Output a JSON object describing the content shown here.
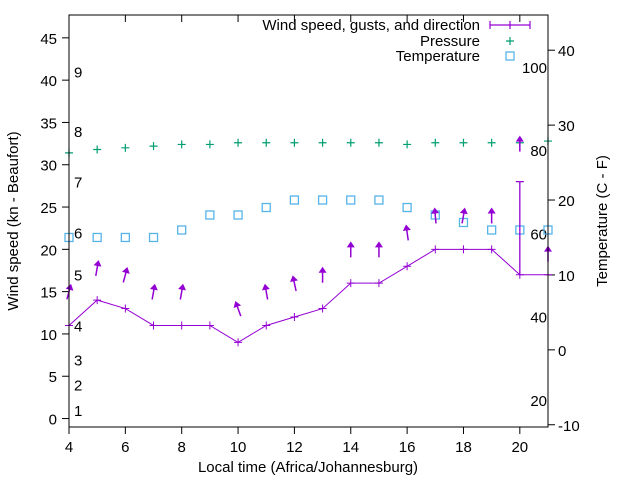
{
  "chart_data": {
    "type": "line",
    "xlabel": "Local time (Africa/Johannesburg)",
    "ylabel": "Wind speed (kn - Beaufort)",
    "y2label": "Temperature (C - F)",
    "xlim": [
      4,
      21
    ],
    "ylim": [
      -1,
      47.7
    ],
    "y2lim": [
      -10.3,
      44.7
    ],
    "xticks": [
      4,
      6,
      8,
      10,
      12,
      14,
      16,
      18,
      20
    ],
    "yticks": [
      0,
      5,
      10,
      15,
      20,
      25,
      30,
      35,
      40,
      45
    ],
    "y2ticks": [
      -10,
      0,
      10,
      20,
      30,
      40
    ],
    "beaufort_labels": [
      {
        "label": "1",
        "kn": 1
      },
      {
        "label": "2",
        "kn": 4
      },
      {
        "label": "3",
        "kn": 7
      },
      {
        "label": "4",
        "kn": 11
      },
      {
        "label": "5",
        "kn": 17
      },
      {
        "label": "6",
        "kn": 22
      },
      {
        "label": "7",
        "kn": 28
      },
      {
        "label": "8",
        "kn": 34
      },
      {
        "label": "9",
        "kn": 41
      }
    ],
    "fahrenheit_labels": [
      {
        "label": "20",
        "f": 20
      },
      {
        "label": "40",
        "f": 40
      },
      {
        "label": "60",
        "f": 60
      },
      {
        "label": "80",
        "f": 80
      },
      {
        "label": "100",
        "f": 100
      }
    ],
    "legend": {
      "placement": "top-right",
      "entries": [
        "Wind speed, gusts, and direction",
        "Pressure",
        "Temperature"
      ]
    },
    "colors": {
      "wind": "#9400d3",
      "pressure": "#009e73",
      "temperature": "#56b4e9"
    },
    "x": [
      4,
      5,
      6,
      7,
      8,
      9,
      10,
      11,
      12,
      13,
      14,
      15,
      16,
      17,
      18,
      19,
      20,
      21
    ],
    "series": [
      {
        "name": "Wind speed, gusts, and direction",
        "axis": "y",
        "values": [
          11,
          14,
          13,
          11,
          11,
          11,
          9,
          11,
          12,
          13,
          16,
          16,
          18,
          20,
          20,
          20,
          17,
          17
        ],
        "gusts": [
          {
            "x": 20,
            "low": 17,
            "high": 28
          }
        ]
      },
      {
        "name": "Pressure",
        "axis": "y",
        "values": [
          31.4,
          31.8,
          32.0,
          32.2,
          32.4,
          32.4,
          32.6,
          32.6,
          32.6,
          32.6,
          32.6,
          32.6,
          32.4,
          32.6,
          32.6,
          32.6,
          32.6,
          32.8
        ]
      },
      {
        "name": "Temperature",
        "axis": "y2",
        "values": [
          15,
          15,
          15,
          15,
          16,
          18,
          18,
          19,
          20,
          20,
          20,
          20,
          19,
          18,
          17,
          16,
          16,
          16
        ]
      }
    ],
    "direction_arrows": [
      {
        "x": 4,
        "kn": 15,
        "deg": 15
      },
      {
        "x": 5,
        "kn": 17.8,
        "deg": 10
      },
      {
        "x": 6,
        "kn": 17,
        "deg": 15
      },
      {
        "x": 7,
        "kn": 15,
        "deg": 10
      },
      {
        "x": 8,
        "kn": 15,
        "deg": 10
      },
      {
        "x": 10,
        "kn": 13,
        "deg": -20
      },
      {
        "x": 11,
        "kn": 15,
        "deg": -10
      },
      {
        "x": 12,
        "kn": 16,
        "deg": -12
      },
      {
        "x": 13,
        "kn": 17,
        "deg": 0
      },
      {
        "x": 14,
        "kn": 20,
        "deg": 0
      },
      {
        "x": 15,
        "kn": 20,
        "deg": 0
      },
      {
        "x": 16,
        "kn": 22,
        "deg": -8
      },
      {
        "x": 17,
        "kn": 24,
        "deg": -5
      },
      {
        "x": 18,
        "kn": 24,
        "deg": 10
      },
      {
        "x": 19,
        "kn": 24,
        "deg": 0
      },
      {
        "x": 20,
        "kn": 32.5,
        "deg": 0
      },
      {
        "x": 21,
        "kn": 19.5,
        "deg": 0
      }
    ]
  }
}
